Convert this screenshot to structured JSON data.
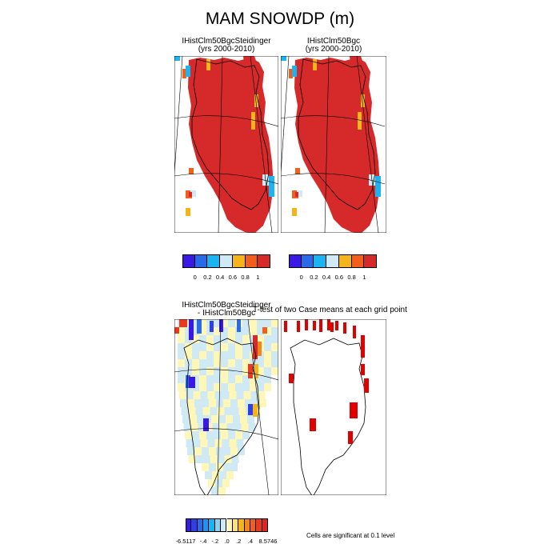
{
  "title": "MAM SNOWDP (m)",
  "panels": {
    "top_left": {
      "title_line1": "IHistClm50BgcSteidinger",
      "title_line2": "(yrs 2000-2010)"
    },
    "top_right": {
      "title_line1": "IHistClm50Bgc",
      "title_line2": "(yrs 2000-2010)"
    },
    "bottom_left": {
      "title_line1": "IHistClm50BgcSteidinger",
      "title_line2": "- IHistClm50Bgc"
    },
    "bottom_right": {
      "title": "T-test of two Case means at each grid point"
    }
  },
  "colorbars": {
    "top": {
      "colors": [
        "#3a19e6",
        "#2a6ae8",
        "#1cb4f0",
        "#cfeaf5",
        "#f5b51a",
        "#f25e1c",
        "#d62a2a"
      ],
      "labels": [
        "0",
        "0.2",
        "0.4",
        "0.6",
        "0.8",
        "1"
      ]
    },
    "diff": {
      "colors": [
        "#3a19e6",
        "#2e3fe8",
        "#2a6ae8",
        "#2590ee",
        "#1cb4f0",
        "#86d2f0",
        "#cfeaf5",
        "#fff7b8",
        "#fde07a",
        "#f5b51a",
        "#f2861c",
        "#f25e1c",
        "#e83a20",
        "#d62a2a"
      ],
      "labels": [
        "-6.5117",
        "-.4",
        "-.2",
        ".0",
        ".2",
        ".4",
        "8.5746"
      ]
    }
  },
  "significance_note": "Cells are significant at 0.1 level",
  "chart_data": [
    {
      "type": "heatmap",
      "title": "IHistClm50BgcSteidinger (yrs 2000-2010)",
      "variable": "SNOWDP",
      "units": "m",
      "season": "MAM",
      "region": "Greenland",
      "scale_levels": [
        0,
        0.2,
        0.4,
        0.6,
        0.8,
        1
      ],
      "dominant_value": "> 1"
    },
    {
      "type": "heatmap",
      "title": "IHistClm50Bgc (yrs 2000-2010)",
      "variable": "SNOWDP",
      "units": "m",
      "season": "MAM",
      "region": "Greenland",
      "scale_levels": [
        0,
        0.2,
        0.4,
        0.6,
        0.8,
        1
      ],
      "dominant_value": "> 1"
    },
    {
      "type": "heatmap",
      "title": "IHistClm50BgcSteidinger - IHistClm50Bgc",
      "variable": "SNOWDP difference",
      "units": "m",
      "range": [
        -6.5117,
        8.5746
      ],
      "scale_labels": [
        "-6.5117",
        "-.4",
        "-.2",
        ".0",
        ".2",
        ".4",
        "8.5746"
      ]
    },
    {
      "type": "heatmap",
      "title": "T-test of two Case means at each grid point",
      "note": "Cells are significant at 0.1 level"
    }
  ]
}
